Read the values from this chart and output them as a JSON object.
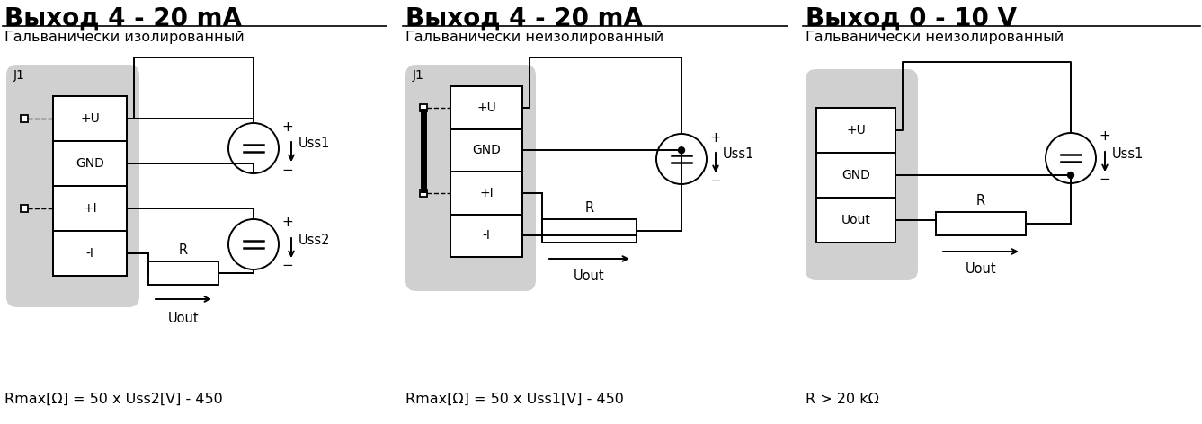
{
  "panel1": {
    "title": "Выход 4 - 20 mA",
    "subtitle": "Гальванически изолированный",
    "formula": "Rmax[Ω] = 50 x Uss2[V] - 450",
    "terminals": [
      "+U",
      "GND",
      "+I",
      "-I"
    ],
    "uss1_label": "Uss1",
    "uss2_label": "Uss2"
  },
  "panel2": {
    "title": "Выход 4 - 20 mA",
    "subtitle": "Гальванически неизолированный",
    "formula": "Rmax[Ω] = 50 x Uss1[V] - 450",
    "terminals": [
      "+U",
      "GND",
      "+I",
      "-I"
    ],
    "uss1_label": "Uss1"
  },
  "panel3": {
    "title": "Выход 0 - 10 V",
    "subtitle": "Гальванически неизолированный",
    "formula": "R > 20 kΩ",
    "terminals": [
      "+U",
      "GND",
      "Uout"
    ],
    "uss1_label": "Uss1"
  },
  "bg_color": "#d0d0d0",
  "line_color": "#000000",
  "white": "#ffffff"
}
